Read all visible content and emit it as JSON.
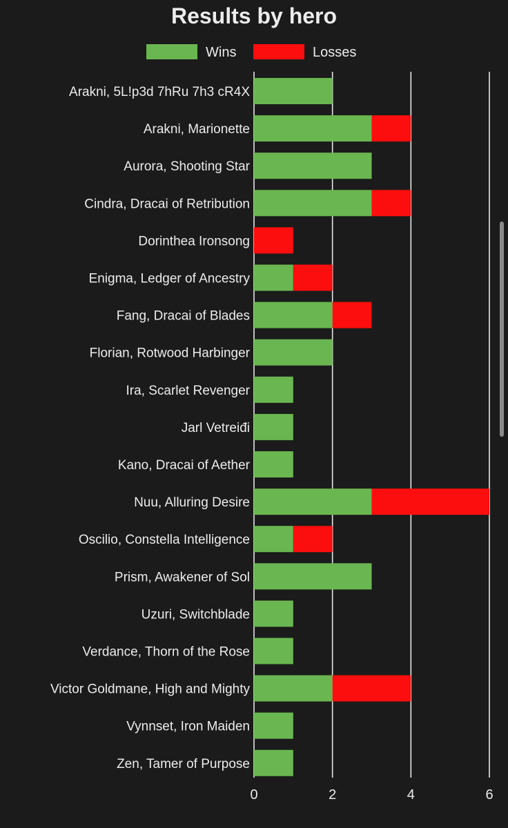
{
  "chart_data": {
    "type": "bar",
    "orientation": "horizontal",
    "stacked": true,
    "title": "Results by hero",
    "legend_position": "top",
    "categories": [
      "Arakni, 5L!p3d 7hRu 7h3 cR4X",
      "Arakni, Marionette",
      "Aurora, Shooting Star",
      "Cindra, Dracai of Retribution",
      "Dorinthea Ironsong",
      "Enigma, Ledger of Ancestry",
      "Fang, Dracai of Blades",
      "Florian, Rotwood Harbinger",
      "Ira, Scarlet Revenger",
      "Jarl Vetreiđi",
      "Kano, Dracai of Aether",
      "Nuu, Alluring Desire",
      "Oscilio, Constella Intelligence",
      "Prism, Awakener of Sol",
      "Uzuri, Switchblade",
      "Verdance, Thorn of the Rose",
      "Victor Goldmane, High and Mighty",
      "Vynnset, Iron Maiden",
      "Zen, Tamer of Purpose"
    ],
    "series": [
      {
        "name": "Wins",
        "color": "#6ab650",
        "values": [
          2,
          3,
          3,
          3,
          0,
          1,
          2,
          2,
          1,
          1,
          1,
          3,
          1,
          3,
          1,
          1,
          2,
          1,
          1
        ]
      },
      {
        "name": "Losses",
        "color": "#fc0e0e",
        "values": [
          0,
          1,
          0,
          1,
          1,
          1,
          1,
          0,
          0,
          0,
          0,
          3,
          1,
          0,
          0,
          0,
          2,
          0,
          0
        ]
      }
    ],
    "xlim": [
      0,
      6
    ],
    "xticks": [
      0,
      2,
      4,
      6
    ],
    "xlabel": "",
    "ylabel": "",
    "grid": true
  }
}
